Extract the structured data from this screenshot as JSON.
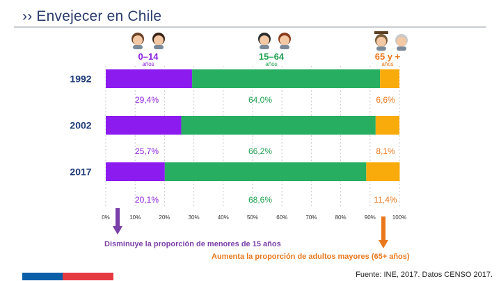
{
  "header": {
    "title": "›› Envejecer en Chile"
  },
  "chart_data": {
    "type": "bar",
    "stacked": true,
    "orientation": "horizontal",
    "categories": [
      "1992",
      "2002",
      "2017"
    ],
    "series": [
      {
        "name": "0-14 años",
        "values": [
          29.4,
          25.7,
          20.1
        ],
        "labels": [
          "29,4%",
          "25,7%",
          "20,1%"
        ]
      },
      {
        "name": "15-64 años",
        "values": [
          64.0,
          66.2,
          68.6
        ],
        "labels": [
          "64,0%",
          "66,2%",
          "68,6%"
        ]
      },
      {
        "name": "65 y + años",
        "values": [
          6.6,
          8.1,
          11.4
        ],
        "labels": [
          "6,6%",
          "8,1%",
          "11,4%"
        ]
      }
    ],
    "legend": [
      {
        "range": "0–14",
        "unit": "años"
      },
      {
        "range": "15–64",
        "unit": "años"
      },
      {
        "range": "65 y +",
        "unit": "años"
      }
    ],
    "xlim": [
      0,
      100
    ],
    "xticks": [
      "0%",
      "10%",
      "20%",
      "30%",
      "40%",
      "50%",
      "60%",
      "70%",
      "80%",
      "90%",
      "100%"
    ],
    "annotations": [
      "Disminuye la proporción de menores de 15 años",
      "Aumenta la proporción de adultos mayores (65+ años)"
    ]
  },
  "colors": {
    "young": "#8c1bf0",
    "adult": "#27ae60",
    "senior": "#f9ab0c",
    "young_text": "#8f1fdc",
    "adult_text": "#21a152",
    "senior_text": "#e9781d",
    "year_text": "#1f3c7a",
    "arrow_young": "#7a3fa8",
    "arrow_senior": "#e9781d"
  },
  "footer": {
    "source": "Fuente: INE, 2017. Datos CENSO 2017.",
    "flag_colors": [
      "#0b5ea8",
      "#e63a43"
    ]
  }
}
